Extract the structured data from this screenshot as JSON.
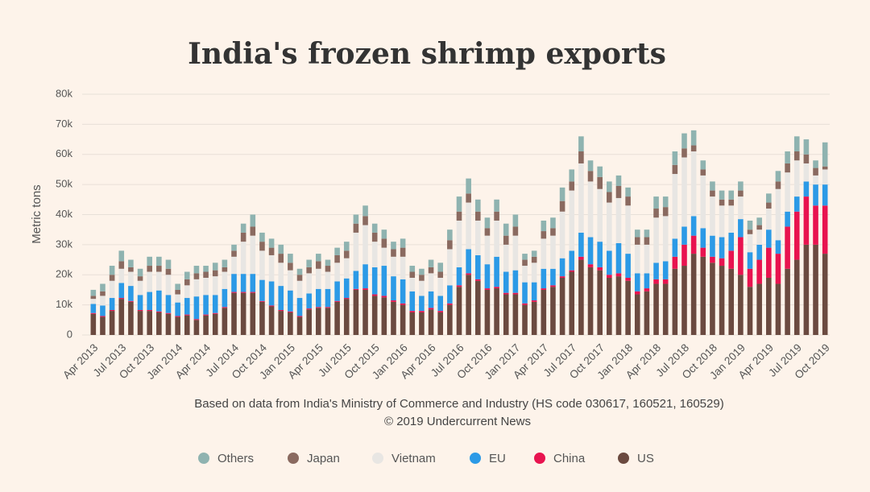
{
  "chart_data": {
    "type": "stacked_bar",
    "title": "India's frozen shrimp exports",
    "y_label": "Metric tons",
    "notes": [
      "Based on data from India's Ministry of Commerce and Industry (HS code 030617, 160521, 160529)",
      "© 2019 Undercurrent News"
    ],
    "categories": [
      "Apr 2013",
      null,
      null,
      "Jul 2013",
      null,
      null,
      "Oct 2013",
      null,
      null,
      "Jan 2014",
      null,
      null,
      "Apr 2014",
      null,
      null,
      "Jul 2014",
      null,
      null,
      "Oct 2014",
      null,
      null,
      "Jan 2015",
      null,
      null,
      "Apr 2015",
      null,
      null,
      "Jul 2015",
      null,
      null,
      "Oct 2015",
      null,
      null,
      "Jan 2016",
      null,
      null,
      "Apr 2016",
      null,
      null,
      "Jul 2016",
      null,
      null,
      "Oct 2016",
      null,
      null,
      "Jan 2017",
      null,
      null,
      "Apr 2017",
      null,
      null,
      "Jul 2017",
      null,
      null,
      "Oct 2017",
      null,
      null,
      "Jan 2018",
      null,
      null,
      "Apr 2018",
      null,
      null,
      "Jul 2018",
      null,
      null,
      "Oct 2018",
      null,
      null,
      "Jan 2019",
      null,
      null,
      "Apr 2019",
      null,
      null,
      "Jul 2019",
      null,
      null,
      "Oct 2019"
    ],
    "ylim": [
      0,
      80000
    ],
    "yticks": [
      0,
      {
        "value": 10000,
        "label": "10k"
      },
      {
        "value": 20000,
        "label": "20k"
      },
      {
        "value": 30000,
        "label": "30k"
      },
      {
        "value": 40000,
        "label": "40k"
      },
      {
        "value": 50000,
        "label": "50k"
      },
      {
        "value": 60000,
        "label": "60k"
      },
      {
        "value": 70000,
        "label": "70k"
      },
      {
        "value": 80000,
        "label": "80k"
      }
    ],
    "grid": true,
    "series": [
      {
        "name": "US",
        "color": "#6b4a40",
        "values": [
          7000,
          6000,
          8000,
          12000,
          11000,
          8000,
          8000,
          7500,
          7000,
          6000,
          6500,
          5000,
          6500,
          7000,
          9000,
          14000,
          14000,
          14000,
          11000,
          9500,
          8000,
          7500,
          6000,
          8500,
          9000,
          9000,
          11000,
          12000,
          15000,
          15000,
          13000,
          12500,
          11000,
          10000,
          7500,
          7500,
          8500,
          7500,
          10000,
          16000,
          20000,
          18000,
          15000,
          15500,
          13500,
          13500,
          10000,
          11000,
          15000,
          16000,
          19000,
          21000,
          25000,
          22500,
          21500,
          19000,
          19500,
          18000,
          13500,
          14500,
          17000,
          17000,
          22000,
          23000,
          27000,
          26000,
          24000,
          23000,
          22000,
          20000,
          16000,
          17000,
          19000,
          17000,
          22000,
          25000,
          30000,
          30000,
          27000
        ]
      },
      {
        "name": "China",
        "color": "#e8134f",
        "values": [
          300,
          300,
          300,
          300,
          300,
          300,
          300,
          300,
          300,
          300,
          300,
          300,
          300,
          300,
          300,
          300,
          300,
          300,
          300,
          300,
          300,
          300,
          300,
          300,
          300,
          300,
          300,
          300,
          300,
          500,
          500,
          500,
          500,
          500,
          500,
          500,
          500,
          500,
          500,
          500,
          500,
          500,
          500,
          500,
          500,
          500,
          500,
          500,
          500,
          500,
          500,
          500,
          1000,
          1000,
          1000,
          1000,
          1000,
          1000,
          1000,
          1000,
          1500,
          1500,
          4000,
          7000,
          6000,
          3000,
          2000,
          2500,
          6000,
          12500,
          6000,
          8000,
          10000,
          10000,
          14000,
          16000,
          16000,
          13000,
          16000
        ]
      },
      {
        "name": "EU",
        "color": "#2c9ae6",
        "values": [
          3000,
          3500,
          4000,
          5000,
          5000,
          5000,
          6000,
          7000,
          6000,
          4500,
          5500,
          7500,
          6500,
          6000,
          6000,
          6000,
          6000,
          6000,
          7000,
          8000,
          8000,
          7000,
          6000,
          5000,
          6000,
          6000,
          6500,
          6500,
          6000,
          8000,
          9000,
          10000,
          8000,
          8000,
          6500,
          5000,
          5500,
          5000,
          6000,
          6000,
          8000,
          8000,
          8000,
          10000,
          7000,
          7500,
          7000,
          6000,
          6500,
          5500,
          6000,
          6500,
          8000,
          9000,
          8500,
          8000,
          10000,
          8000,
          6000,
          5000,
          5500,
          6000,
          6000,
          6000,
          6500,
          6500,
          7000,
          7000,
          6000,
          6000,
          5500,
          5000,
          6000,
          4500,
          5000,
          5000,
          5000,
          7000,
          7000
        ]
      },
      {
        "name": "Vietnam",
        "color": "#e8e6e3",
        "values": [
          1700,
          3200,
          5700,
          4700,
          4700,
          4700,
          6700,
          6200,
          6700,
          2700,
          4200,
          5700,
          5700,
          6200,
          5700,
          5700,
          10700,
          12700,
          9700,
          8700,
          7700,
          6700,
          5700,
          6700,
          6700,
          5700,
          6200,
          6700,
          12700,
          13000,
          8500,
          6000,
          6500,
          7500,
          4500,
          5000,
          6000,
          6000,
          12000,
          15500,
          15500,
          11500,
          9500,
          12000,
          9000,
          11500,
          5500,
          6500,
          10000,
          11000,
          15500,
          20000,
          23000,
          18500,
          17500,
          16000,
          15000,
          16000,
          9500,
          9500,
          15000,
          15000,
          21500,
          23000,
          21500,
          17500,
          13000,
          10500,
          9000,
          7500,
          6000,
          5000,
          7000,
          17000,
          13000,
          12000,
          6000,
          3000,
          5000
        ]
      },
      {
        "name": "Japan",
        "color": "#8a6a60",
        "values": [
          1000,
          1500,
          2000,
          2500,
          1500,
          1500,
          2000,
          2000,
          2000,
          1500,
          2000,
          2000,
          2000,
          2000,
          1500,
          2000,
          3000,
          3000,
          3000,
          2500,
          3000,
          2500,
          2000,
          2000,
          2500,
          2000,
          2500,
          2500,
          3000,
          3000,
          3000,
          3000,
          2500,
          3000,
          2000,
          2000,
          2000,
          2000,
          3000,
          3000,
          3000,
          3000,
          2500,
          3000,
          3000,
          3000,
          2000,
          2000,
          2500,
          2500,
          3500,
          3000,
          4000,
          3500,
          4000,
          3500,
          4000,
          3000,
          2500,
          2500,
          3000,
          3000,
          3000,
          3000,
          2000,
          2000,
          2000,
          2000,
          2000,
          2000,
          1500,
          1500,
          2000,
          2500,
          3000,
          3000,
          3000,
          2500,
          1000
        ]
      },
      {
        "name": "Others",
        "color": "#8fb3b0",
        "values": [
          2000,
          2500,
          3000,
          3500,
          2500,
          2500,
          3000,
          3000,
          3000,
          2000,
          2500,
          2500,
          2000,
          2500,
          2500,
          2000,
          3000,
          4000,
          3000,
          3000,
          3000,
          3000,
          2000,
          2500,
          2500,
          2000,
          2500,
          3000,
          3000,
          3500,
          3000,
          3000,
          2500,
          3000,
          2000,
          2000,
          2500,
          3000,
          3500,
          5000,
          5000,
          4000,
          3500,
          4000,
          4000,
          4000,
          2000,
          2000,
          3500,
          3500,
          4500,
          4000,
          5000,
          3500,
          3500,
          3500,
          3500,
          3000,
          2500,
          2500,
          4000,
          3500,
          4500,
          5000,
          5000,
          3000,
          3000,
          3000,
          3000,
          3000,
          3000,
          2500,
          3000,
          3500,
          4000,
          5000,
          5000,
          2500,
          8000
        ]
      }
    ]
  }
}
